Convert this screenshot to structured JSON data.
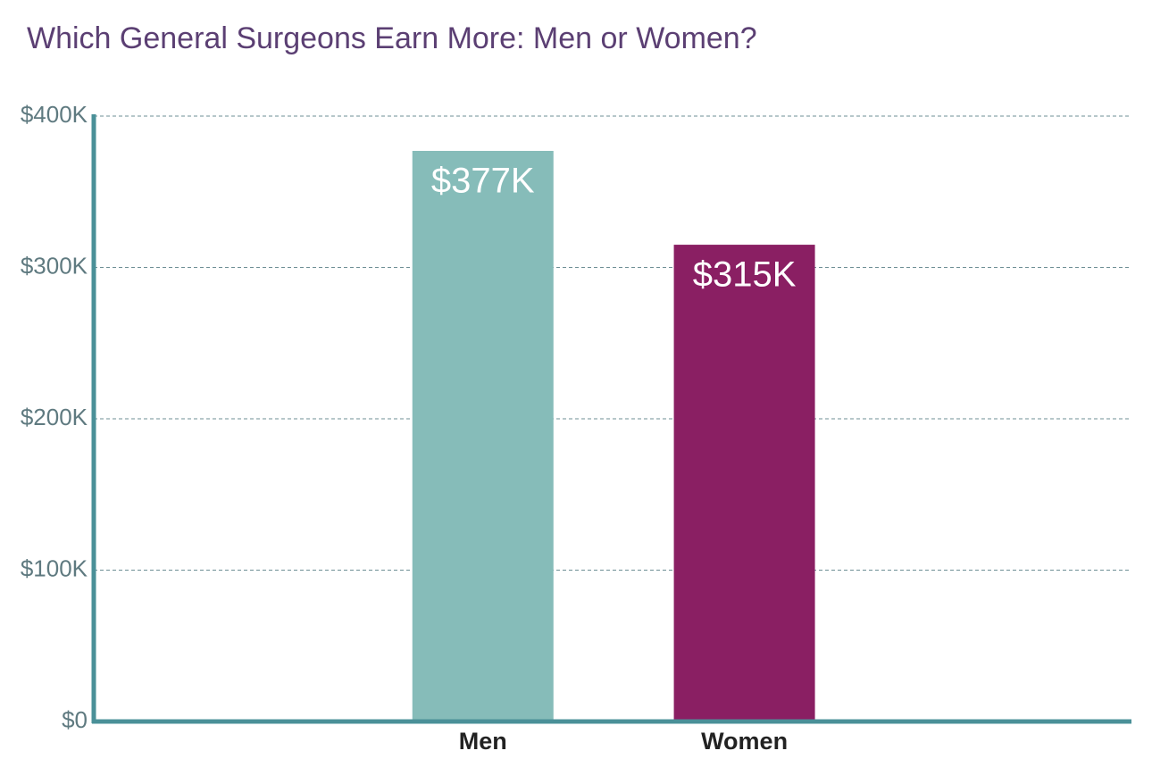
{
  "chart_data": {
    "type": "bar",
    "title": "Which General Surgeons Earn More: Men or Women?",
    "categories": [
      "Men",
      "Women"
    ],
    "values": [
      377000,
      315000
    ],
    "value_labels": [
      "$377K",
      "$315K"
    ],
    "colors": [
      "#86bcb9",
      "#8a1f63"
    ],
    "ylim": [
      0,
      400000
    ],
    "yticks": [
      {
        "value": 0,
        "label": "$0"
      },
      {
        "value": 100000,
        "label": "$100K"
      },
      {
        "value": 200000,
        "label": "$200K"
      },
      {
        "value": 300000,
        "label": "$300K"
      },
      {
        "value": 400000,
        "label": "$400K"
      }
    ],
    "grid": true
  }
}
